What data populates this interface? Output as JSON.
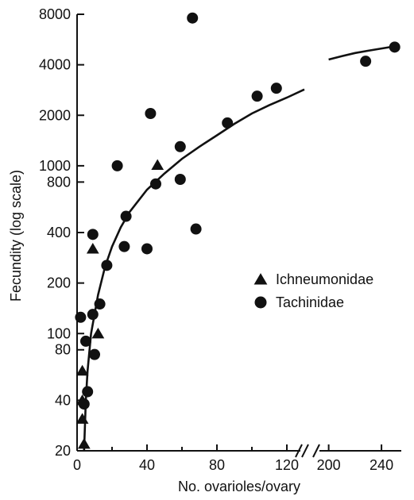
{
  "chart_data": {
    "type": "scatter",
    "xlabel": "No. ovarioles/ovary",
    "ylabel": "Fecundity (log scale)",
    "y_scale": "log",
    "ylim": [
      20,
      8000
    ],
    "x_segments": [
      {
        "min": 0,
        "max": 130
      },
      {
        "min": 190,
        "max": 255
      }
    ],
    "x_break_between": [
      130,
      190
    ],
    "x_ticks": [
      {
        "value": 0,
        "label": "0"
      },
      {
        "value": 40,
        "label": "40"
      },
      {
        "value": 80,
        "label": "80"
      },
      {
        "value": 120,
        "label": "120"
      },
      {
        "value": 200,
        "label": "200"
      },
      {
        "value": 240,
        "label": "240"
      }
    ],
    "x_minor_ticks": [
      20,
      60,
      100
    ],
    "y_ticks": [
      {
        "value": 20,
        "label": "20"
      },
      {
        "value": 40,
        "label": "40"
      },
      {
        "value": 80,
        "label": "80"
      },
      {
        "value": 100,
        "label": "100"
      },
      {
        "value": 200,
        "label": "200"
      },
      {
        "value": 400,
        "label": "400"
      },
      {
        "value": 800,
        "label": "800"
      },
      {
        "value": 1000,
        "label": "1000"
      },
      {
        "value": 2000,
        "label": "2000"
      },
      {
        "value": 4000,
        "label": "4000"
      },
      {
        "value": 8000,
        "label": "8000"
      }
    ],
    "legend": {
      "position": "right-middle"
    },
    "series": [
      {
        "name": "Ichneumonidae",
        "marker": "triangle",
        "points": [
          [
            3,
            60
          ],
          [
            3,
            40
          ],
          [
            3,
            31
          ],
          [
            4,
            22
          ],
          [
            9,
            320
          ],
          [
            12,
            100
          ],
          [
            46,
            1010
          ]
        ]
      },
      {
        "name": "Tachinidae",
        "marker": "circle",
        "points": [
          [
            2,
            125
          ],
          [
            4,
            38
          ],
          [
            5,
            90
          ],
          [
            6,
            45
          ],
          [
            9,
            390
          ],
          [
            9,
            130
          ],
          [
            10,
            75
          ],
          [
            13,
            150
          ],
          [
            17,
            255
          ],
          [
            23,
            1000
          ],
          [
            27,
            330
          ],
          [
            28,
            500
          ],
          [
            40,
            320
          ],
          [
            42,
            2050
          ],
          [
            45,
            780
          ],
          [
            59,
            830
          ],
          [
            59,
            1300
          ],
          [
            66,
            7600
          ],
          [
            68,
            420
          ],
          [
            86,
            1800
          ],
          [
            103,
            2600
          ],
          [
            114,
            2900
          ],
          [
            228,
            4200
          ],
          [
            250,
            5100
          ]
        ]
      }
    ],
    "fit_curves": [
      {
        "points": [
          [
            4,
            20
          ],
          [
            5,
            40
          ],
          [
            6,
            60
          ],
          [
            8,
            100
          ],
          [
            12,
            170
          ],
          [
            16,
            250
          ],
          [
            20,
            330
          ],
          [
            25,
            430
          ],
          [
            30,
            530
          ],
          [
            40,
            720
          ],
          [
            50,
            900
          ],
          [
            60,
            1100
          ],
          [
            70,
            1300
          ],
          [
            80,
            1520
          ],
          [
            90,
            1780
          ],
          [
            100,
            2050
          ],
          [
            110,
            2300
          ],
          [
            120,
            2550
          ],
          [
            130,
            2850
          ]
        ]
      },
      {
        "points": [
          [
            200,
            4300
          ],
          [
            210,
            4500
          ],
          [
            220,
            4700
          ],
          [
            230,
            4850
          ],
          [
            240,
            5000
          ],
          [
            250,
            5150
          ]
        ]
      }
    ]
  }
}
